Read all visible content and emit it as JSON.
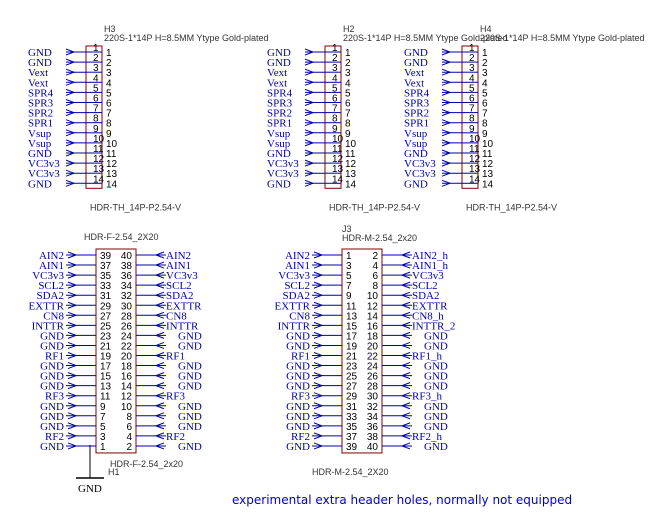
{
  "note": "experimental extra header holes, normally not equipped",
  "gnd_label": "GND",
  "colors": {
    "body": "#800000",
    "wire": "#0000aa",
    "net": "#0000aa",
    "pin_num": "#000000",
    "ground": "#000000"
  },
  "top_connectors": [
    {
      "designator": "H3",
      "comment": "220S-1*14P H=8.5MM Ytype Gold-plated",
      "footprint": "HDR-TH_14P-P2.54-V",
      "pins": [
        {
          "num": "1",
          "net": "GND"
        },
        {
          "num": "2",
          "net": "GND"
        },
        {
          "num": "3",
          "net": "Vext"
        },
        {
          "num": "4",
          "net": "Vext"
        },
        {
          "num": "5",
          "net": "SPR4"
        },
        {
          "num": "6",
          "net": "SPR3"
        },
        {
          "num": "7",
          "net": "SPR2"
        },
        {
          "num": "8",
          "net": "SPR1"
        },
        {
          "num": "9",
          "net": "Vsup"
        },
        {
          "num": "10",
          "net": "Vsup"
        },
        {
          "num": "11",
          "net": "GND"
        },
        {
          "num": "12",
          "net": "VC3v3"
        },
        {
          "num": "13",
          "net": "VC3v3"
        },
        {
          "num": "14",
          "net": "GND"
        }
      ]
    },
    {
      "designator": "H2",
      "comment": "220S-1*14P H=8.5MM Ytype Gold-plated",
      "footprint": "HDR-TH_14P-P2.54-V",
      "pins": [
        {
          "num": "1",
          "net": "GND"
        },
        {
          "num": "2",
          "net": "GND"
        },
        {
          "num": "3",
          "net": "Vext"
        },
        {
          "num": "4",
          "net": "Vext"
        },
        {
          "num": "5",
          "net": "SPR4"
        },
        {
          "num": "6",
          "net": "SPR3"
        },
        {
          "num": "7",
          "net": "SPR2"
        },
        {
          "num": "8",
          "net": "SPR1"
        },
        {
          "num": "9",
          "net": "Vsup"
        },
        {
          "num": "10",
          "net": "Vsup"
        },
        {
          "num": "11",
          "net": "GND"
        },
        {
          "num": "12",
          "net": "VC3v3"
        },
        {
          "num": "13",
          "net": "VC3v3"
        },
        {
          "num": "14",
          "net": "GND"
        }
      ]
    },
    {
      "designator": "H4",
      "comment": "220S-1*14P H=8.5MM Ytype Gold-plated",
      "footprint": "HDR-TH_14P-P2.54-V",
      "pins": [
        {
          "num": "1",
          "net": "GND"
        },
        {
          "num": "2",
          "net": "GND"
        },
        {
          "num": "3",
          "net": "Vext"
        },
        {
          "num": "4",
          "net": "Vext"
        },
        {
          "num": "5",
          "net": "SPR4"
        },
        {
          "num": "6",
          "net": "SPR3"
        },
        {
          "num": "7",
          "net": "SPR2"
        },
        {
          "num": "8",
          "net": "SPR1"
        },
        {
          "num": "9",
          "net": "Vsup"
        },
        {
          "num": "10",
          "net": "Vsup"
        },
        {
          "num": "11",
          "net": "GND"
        },
        {
          "num": "12",
          "net": "VC3v3"
        },
        {
          "num": "13",
          "net": "VC3v3"
        },
        {
          "num": "14",
          "net": "GND"
        }
      ]
    }
  ],
  "bottom_connectors": [
    {
      "designator": "H1",
      "part_label": "HDR-F-2.54_2X20",
      "footprint": "HDR-F-2.54_2x20",
      "rows": [
        {
          "l_num": "39",
          "l_net": "AIN2",
          "r_num": "40",
          "r_net": "AIN2"
        },
        {
          "l_num": "37",
          "l_net": "AIN1",
          "r_num": "38",
          "r_net": "AIN1"
        },
        {
          "l_num": "35",
          "l_net": "VC3v3",
          "r_num": "36",
          "r_net": "VC3v3"
        },
        {
          "l_num": "33",
          "l_net": "SCL2",
          "r_num": "34",
          "r_net": "SCL2"
        },
        {
          "l_num": "31",
          "l_net": "SDA2",
          "r_num": "32",
          "r_net": "SDA2"
        },
        {
          "l_num": "29",
          "l_net": "EXTTR",
          "r_num": "30",
          "r_net": "EXTTR"
        },
        {
          "l_num": "27",
          "l_net": "CN8",
          "r_num": "28",
          "r_net": "CN8"
        },
        {
          "l_num": "25",
          "l_net": "INTTR",
          "r_num": "26",
          "r_net": "INTTR"
        },
        {
          "l_num": "23",
          "l_net": "GND",
          "r_num": "24",
          "r_net": "GND"
        },
        {
          "l_num": "21",
          "l_net": "GND",
          "r_num": "22",
          "r_net": "GND"
        },
        {
          "l_num": "19",
          "l_net": "RF1",
          "r_num": "20",
          "r_net": "RF1"
        },
        {
          "l_num": "17",
          "l_net": "GND",
          "r_num": "18",
          "r_net": "GND"
        },
        {
          "l_num": "15",
          "l_net": "GND",
          "r_num": "16",
          "r_net": "GND"
        },
        {
          "l_num": "13",
          "l_net": "GND",
          "r_num": "14",
          "r_net": "GND"
        },
        {
          "l_num": "11",
          "l_net": "RF3",
          "r_num": "12",
          "r_net": "RF3"
        },
        {
          "l_num": "9",
          "l_net": "GND",
          "r_num": "10",
          "r_net": "GND"
        },
        {
          "l_num": "7",
          "l_net": "GND",
          "r_num": "8",
          "r_net": "GND"
        },
        {
          "l_num": "5",
          "l_net": "GND",
          "r_num": "6",
          "r_net": "GND"
        },
        {
          "l_num": "3",
          "l_net": "RF2",
          "r_num": "4",
          "r_net": "RF2"
        },
        {
          "l_num": "1",
          "l_net": "GND",
          "r_num": "2",
          "r_net": "GND"
        }
      ]
    },
    {
      "designator": "J3",
      "part_label": "HDR-M-2.54_2x20",
      "footprint": "HDR-M-2.54_2X20",
      "rows": [
        {
          "l_num": "1",
          "l_net": "AIN2",
          "r_num": "2",
          "r_net": "AIN2_h"
        },
        {
          "l_num": "3",
          "l_net": "AIN1",
          "r_num": "4",
          "r_net": "AIN1_h"
        },
        {
          "l_num": "5",
          "l_net": "VC3v3",
          "r_num": "6",
          "r_net": "VC3v3"
        },
        {
          "l_num": "7",
          "l_net": "SCL2",
          "r_num": "8",
          "r_net": "SCL2"
        },
        {
          "l_num": "9",
          "l_net": "SDA2",
          "r_num": "10",
          "r_net": "SDA2"
        },
        {
          "l_num": "11",
          "l_net": "EXTTR",
          "r_num": "12",
          "r_net": "EXTTR"
        },
        {
          "l_num": "13",
          "l_net": "CN8",
          "r_num": "14",
          "r_net": "CN8_h"
        },
        {
          "l_num": "15",
          "l_net": "INTTR",
          "r_num": "16",
          "r_net": "INTTR_2"
        },
        {
          "l_num": "17",
          "l_net": "GND",
          "r_num": "18",
          "r_net": "GND"
        },
        {
          "l_num": "19",
          "l_net": "GND",
          "r_num": "20",
          "r_net": "GND"
        },
        {
          "l_num": "21",
          "l_net": "RF1",
          "r_num": "22",
          "r_net": "RF1_h"
        },
        {
          "l_num": "23",
          "l_net": "GND",
          "r_num": "24",
          "r_net": "GND"
        },
        {
          "l_num": "25",
          "l_net": "GND",
          "r_num": "26",
          "r_net": "GND"
        },
        {
          "l_num": "27",
          "l_net": "GND",
          "r_num": "28",
          "r_net": "GND"
        },
        {
          "l_num": "29",
          "l_net": "RF3",
          "r_num": "30",
          "r_net": "RF3_h"
        },
        {
          "l_num": "31",
          "l_net": "GND",
          "r_num": "32",
          "r_net": "GND"
        },
        {
          "l_num": "33",
          "l_net": "GND",
          "r_num": "34",
          "r_net": "GND"
        },
        {
          "l_num": "35",
          "l_net": "GND",
          "r_num": "36",
          "r_net": "GND"
        },
        {
          "l_num": "37",
          "l_net": "RF2",
          "r_num": "38",
          "r_net": "RF2_h"
        },
        {
          "l_num": "39",
          "l_net": "GND",
          "r_num": "40",
          "r_net": "GND"
        }
      ]
    }
  ]
}
